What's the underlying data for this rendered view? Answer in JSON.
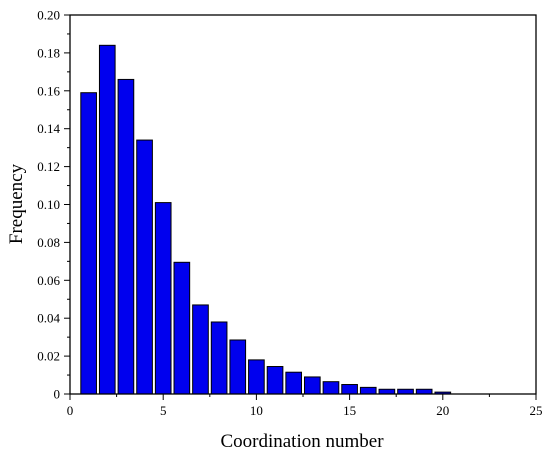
{
  "chart_data": {
    "type": "bar",
    "xlabel": "Coordination number",
    "ylabel": "Frequency",
    "xlim": [
      0,
      25
    ],
    "ylim": [
      0,
      0.2
    ],
    "x_ticks": [
      0,
      5,
      10,
      15,
      20,
      25
    ],
    "y_ticks": [
      0,
      0.02,
      0.04,
      0.06,
      0.08,
      0.1,
      0.12,
      0.14,
      0.16,
      0.18,
      0.2
    ],
    "x_tick_labels": [
      "0",
      "5",
      "10",
      "15",
      "20",
      "25"
    ],
    "y_tick_labels": [
      "0",
      "0.02",
      "0.04",
      "0.06",
      "0.08",
      "0.10",
      "0.12",
      "0.14",
      "0.16",
      "0.18",
      "0.20"
    ],
    "x": [
      1,
      2,
      3,
      4,
      5,
      6,
      7,
      8,
      9,
      10,
      11,
      12,
      13,
      14,
      15,
      16,
      17,
      18,
      19,
      20
    ],
    "values": [
      0.159,
      0.184,
      0.166,
      0.134,
      0.101,
      0.0695,
      0.047,
      0.038,
      0.0285,
      0.018,
      0.0145,
      0.0115,
      0.009,
      0.0065,
      0.005,
      0.0035,
      0.0025,
      0.0025,
      0.0025,
      0.001
    ],
    "bar_color": "#0000ee",
    "bar_edge_color": "#000000",
    "grid": false,
    "legend": "none"
  }
}
